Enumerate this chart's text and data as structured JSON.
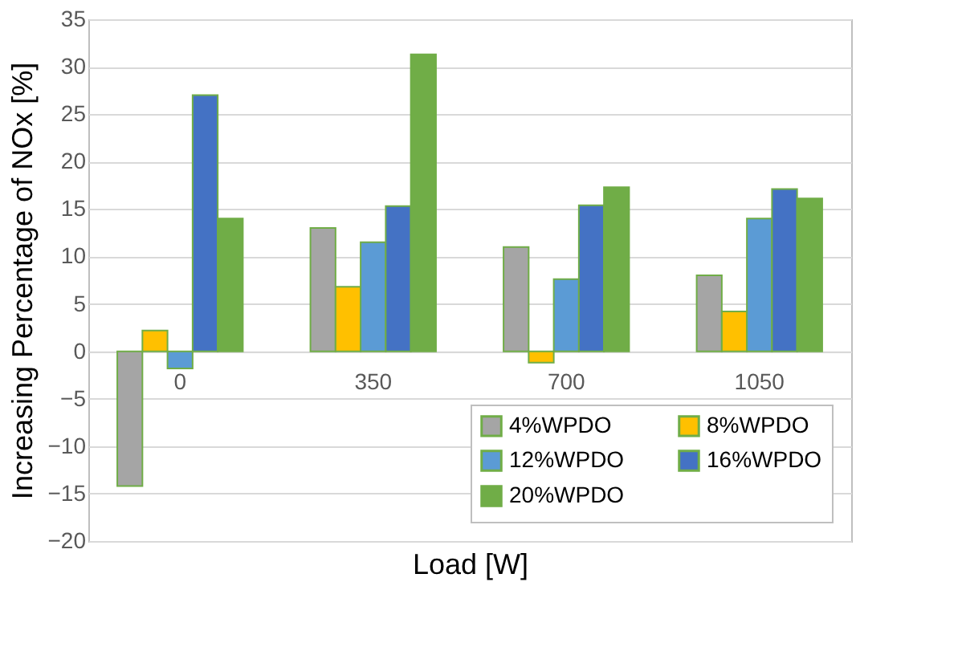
{
  "chart_data": {
    "type": "bar",
    "xlabel": "Load [W]",
    "ylabel": "Increasing Percentage of NOx [%]",
    "categories": [
      "0",
      "350",
      "700",
      "1050"
    ],
    "series": [
      {
        "name": "4%WPDO",
        "color": "#a5a5a5",
        "values": [
          -14.2,
          13,
          11,
          8
        ]
      },
      {
        "name": "8%WPDO",
        "color": "#ffc000",
        "values": [
          2.2,
          6.8,
          -1.2,
          4.2
        ]
      },
      {
        "name": "12%WPDO",
        "color": "#5b9bd5",
        "values": [
          -1.8,
          11.5,
          7.6,
          14
        ]
      },
      {
        "name": "16%WPDO",
        "color": "#4472c4",
        "values": [
          27,
          15.3,
          15.4,
          17.1
        ]
      },
      {
        "name": "20%WPDO",
        "color": "#70ad47",
        "values": [
          14,
          31.3,
          17.3,
          16.1
        ]
      }
    ],
    "ylim": [
      -20,
      35
    ],
    "yticks": [
      -20,
      -15,
      -10,
      -5,
      0,
      5,
      10,
      15,
      20,
      25,
      30,
      35
    ],
    "grid": "y",
    "legend": "bottom right"
  }
}
